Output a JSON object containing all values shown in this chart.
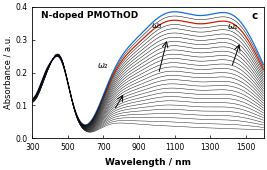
{
  "title": "N-doped PMOThOD",
  "label_c": "c",
  "xlabel": "Wavelength / nm",
  "ylabel": "Absorbance / a.u.",
  "xlim": [
    300,
    1600
  ],
  "ylim": [
    0,
    0.4
  ],
  "xticks": [
    300,
    500,
    700,
    900,
    1100,
    1300,
    1500
  ],
  "yticks": [
    0,
    0.1,
    0.2,
    0.3,
    0.4
  ],
  "omega1_label": "ω₁",
  "omega2_label": "ω₂",
  "omega3_label": "ω₃",
  "n_curves": 28,
  "arrow_lw": 0.7,
  "curve_lw": 0.35,
  "special_lw": 0.9,
  "blue_color": "#1a6fd4",
  "red_color": "#cc2200"
}
